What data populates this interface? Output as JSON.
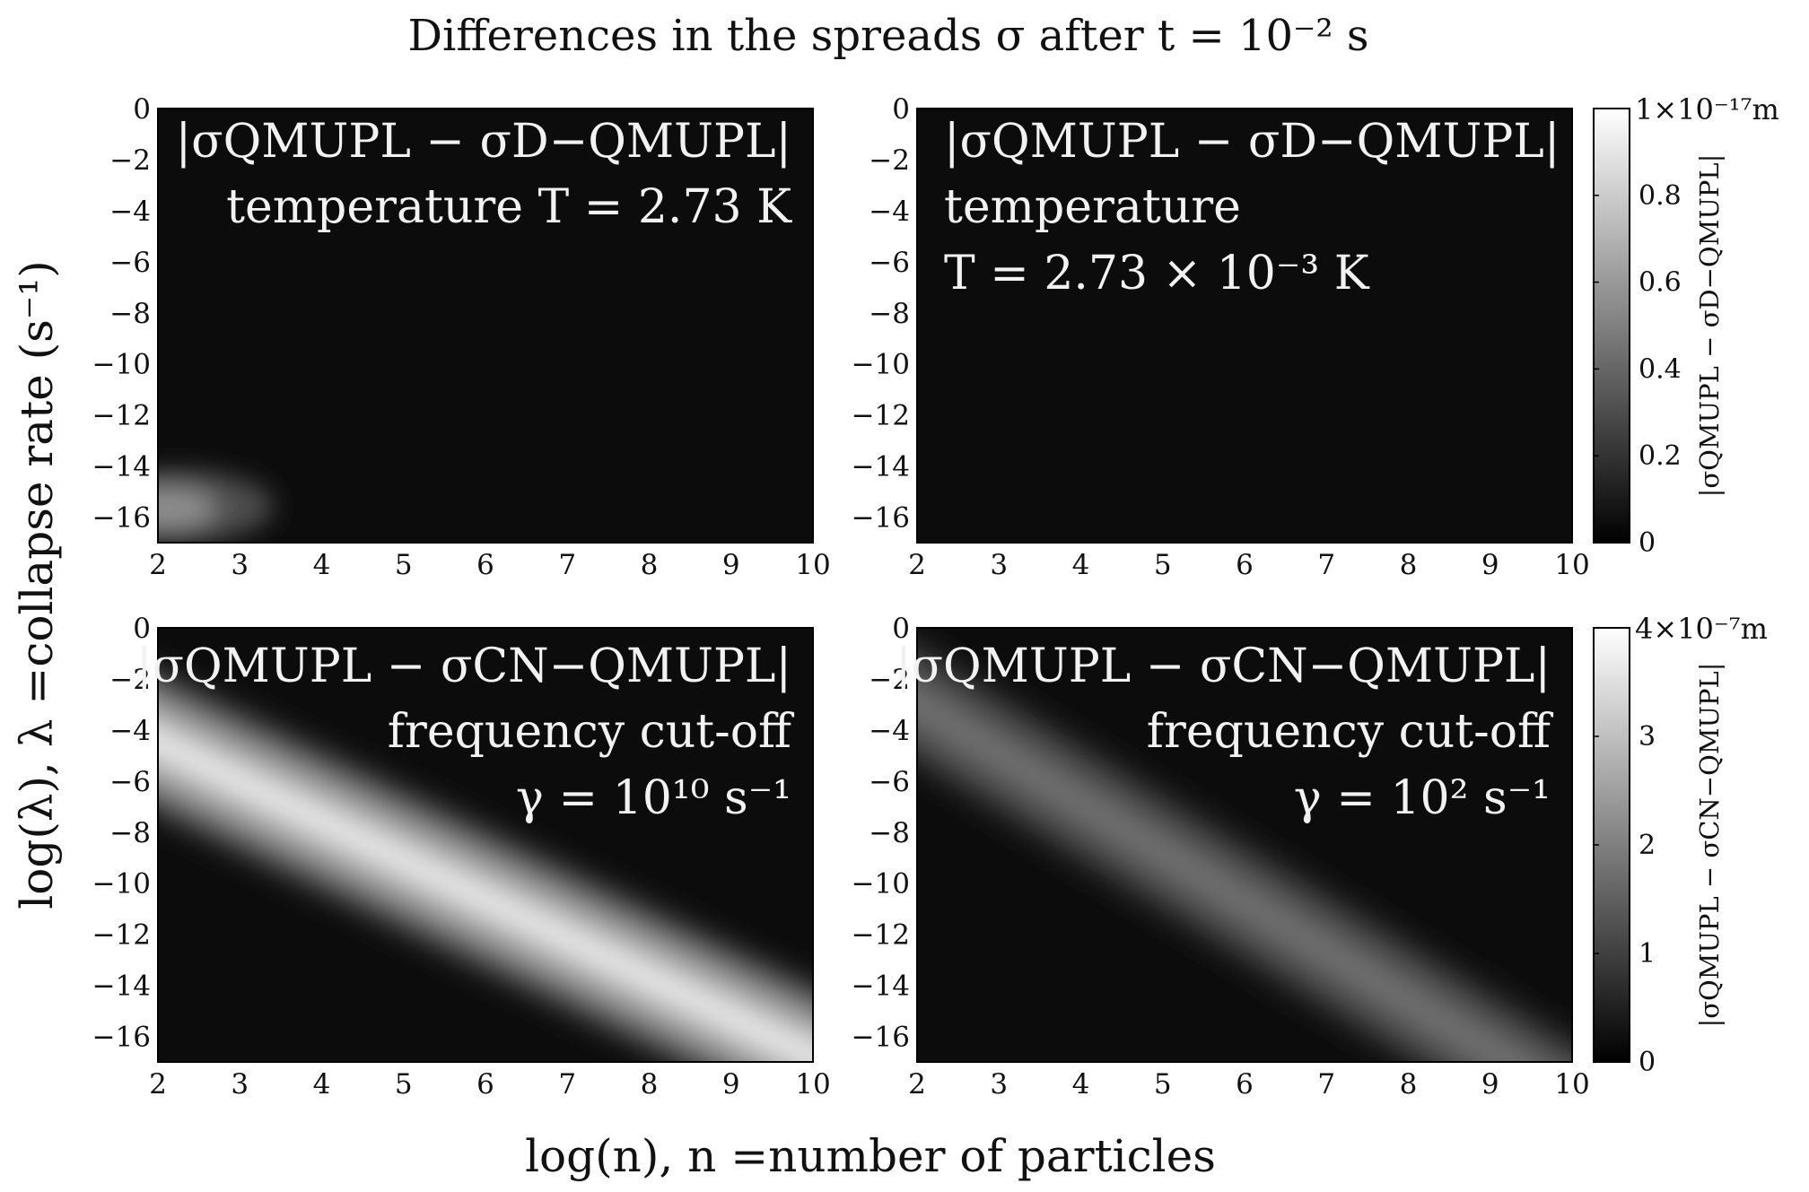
{
  "chart_data": {
    "type": "heatmap",
    "title": "Differences in the spreads σ after t = 10⁻² s",
    "xlabel": "log(n), n =number of particles",
    "ylabel": "log(λ), λ =collapse rate (s⁻¹)",
    "xlim": [
      2,
      10
    ],
    "ylim": [
      -17,
      0
    ],
    "xticks": [
      "2",
      "3",
      "4",
      "5",
      "6",
      "7",
      "8",
      "9",
      "10"
    ],
    "yticks": [
      "0",
      "−2",
      "−4",
      "−6",
      "−8",
      "−10",
      "−12",
      "−14",
      "−16"
    ],
    "colormap": "grayscale",
    "panels": [
      {
        "id": "top-left",
        "annotation": [
          "|σQMUPL − σD−QMUPL|",
          "temperature T = 2.73 K"
        ],
        "feature": {
          "kind": "blob",
          "x_range": [
            2,
            3.4
          ],
          "y_range": [
            -17,
            -13.6
          ],
          "peak_relative": 0.55
        }
      },
      {
        "id": "top-right",
        "annotation": [
          "|σQMUPL − σD−QMUPL|",
          "temperature",
          "T = 2.73 × 10⁻³ K"
        ],
        "feature": {
          "kind": "none"
        }
      },
      {
        "id": "bottom-left",
        "annotation": [
          "|σQMUPL − σCN−QMUPL|",
          "frequency cut-off",
          "γ = 10¹⁰ s⁻¹"
        ],
        "feature": {
          "kind": "band",
          "ridge_start": [
            2,
            -4.5
          ],
          "ridge_end": [
            10,
            -16.8
          ],
          "half_width": 1.8,
          "peak_relative": 0.95
        }
      },
      {
        "id": "bottom-right",
        "annotation": [
          "|σQMUPL − σCN−QMUPL|",
          "frequency cut-off",
          "γ = 10² s⁻¹"
        ],
        "feature": {
          "kind": "band",
          "ridge_start": [
            2,
            -3.0
          ],
          "ridge_end": [
            10,
            -18.5
          ],
          "half_width": 1.5,
          "peak_relative": 0.45
        }
      }
    ],
    "colorbars": [
      {
        "id": "top",
        "ticks": [
          "0",
          "0.2",
          "0.4",
          "0.6",
          "0.8"
        ],
        "tick_values": [
          0,
          0.2,
          0.4,
          0.6,
          0.8
        ],
        "max": 1,
        "max_label": "1×10⁻¹⁷m",
        "label": "|σQMUPL − σD−QMUPL|"
      },
      {
        "id": "bottom",
        "ticks": [
          "0",
          "1",
          "2",
          "3"
        ],
        "tick_values": [
          0,
          1,
          2,
          3
        ],
        "max": 4,
        "max_label": "4×10⁻⁷m",
        "label": "|σQMUPL − σCN−QMUPL|"
      }
    ]
  }
}
